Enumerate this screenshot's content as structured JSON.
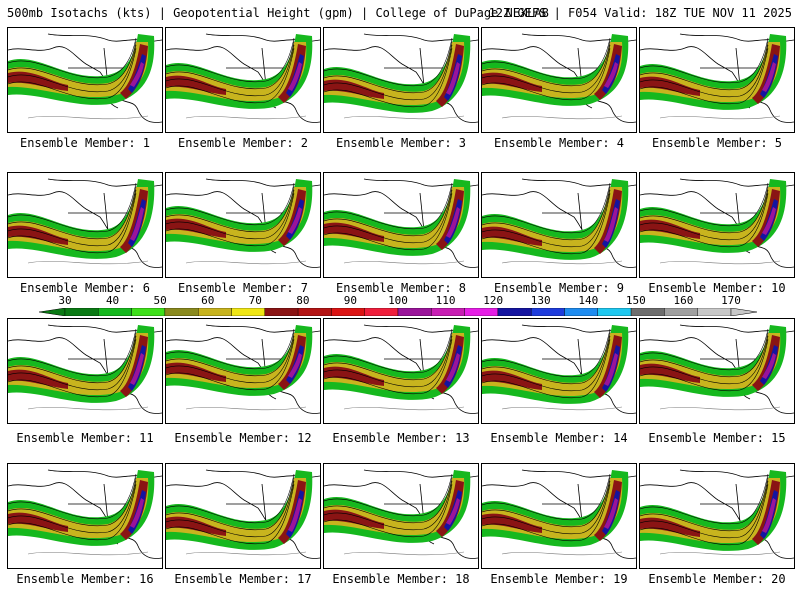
{
  "header": {
    "left": "500mb Isotachs (kts) | Geopotential Height (gpm) | College of DuPage NEXLAB",
    "right": "12Z GEFS | F054 Valid: 18Z TUE NOV 11 2025"
  },
  "panels": [
    {
      "label": "Ensemble Member: 1"
    },
    {
      "label": "Ensemble Member: 2"
    },
    {
      "label": "Ensemble Member: 3"
    },
    {
      "label": "Ensemble Member: 4"
    },
    {
      "label": "Ensemble Member: 5"
    },
    {
      "label": "Ensemble Member: 6"
    },
    {
      "label": "Ensemble Member: 7"
    },
    {
      "label": "Ensemble Member: 8"
    },
    {
      "label": "Ensemble Member: 9"
    },
    {
      "label": "Ensemble Member: 10"
    },
    {
      "label": "Ensemble Member: 11"
    },
    {
      "label": "Ensemble Member: 12"
    },
    {
      "label": "Ensemble Member: 13"
    },
    {
      "label": "Ensemble Member: 14"
    },
    {
      "label": "Ensemble Member: 15"
    },
    {
      "label": "Ensemble Member: 16"
    },
    {
      "label": "Ensemble Member: 17"
    },
    {
      "label": "Ensemble Member: 18"
    },
    {
      "label": "Ensemble Member: 19"
    },
    {
      "label": "Ensemble Member: 20"
    }
  ],
  "legend": {
    "ticks": [
      "30",
      "40",
      "50",
      "60",
      "70",
      "80",
      "90",
      "100",
      "110",
      "120",
      "130",
      "140",
      "150",
      "160",
      "170"
    ],
    "colors": [
      "#0a7a14",
      "#16b81e",
      "#3ee01a",
      "#8a8a1e",
      "#c8b41e",
      "#f0e614",
      "#8a1414",
      "#b41414",
      "#dc1414",
      "#f01e3c",
      "#9a149a",
      "#c81eb4",
      "#e61ee6",
      "#1414a0",
      "#1e3cdc",
      "#1e8cf0",
      "#1ec8f0",
      "#6e6e6e",
      "#a0a0a0",
      "#c8c8c8"
    ]
  }
}
